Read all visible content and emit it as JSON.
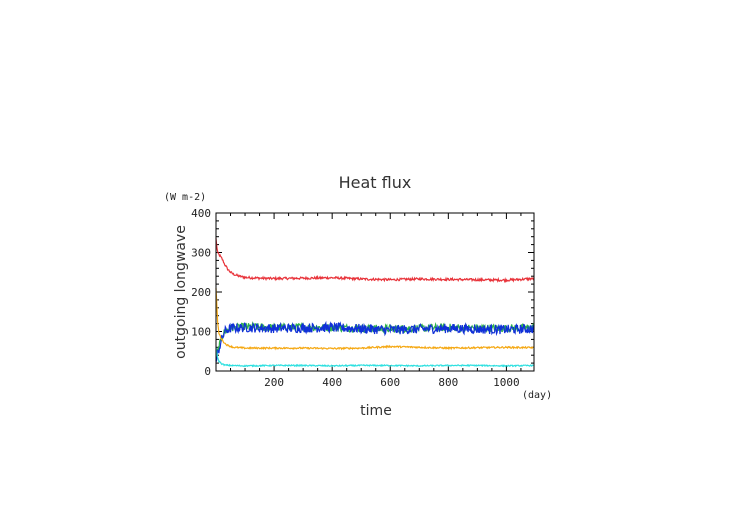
{
  "chart_data": {
    "type": "line",
    "title": "Heat flux",
    "xlabel": "time",
    "ylabel": "outgoing longwave",
    "xunit": "(day)",
    "yunit": "(W m-2)",
    "xlim": [
      0,
      1095
    ],
    "ylim": [
      0,
      400
    ],
    "xticks": [
      200,
      400,
      600,
      800,
      1000
    ],
    "yticks": [
      0,
      100,
      200,
      300,
      400
    ],
    "grid": false,
    "series": [
      {
        "color": "#e8333a",
        "x": [
          0,
          5,
          10,
          20,
          30,
          40,
          50,
          60,
          80,
          100,
          150,
          200,
          300,
          400,
          500,
          600,
          700,
          800,
          900,
          1000,
          1050,
          1095
        ],
        "values": [
          335,
          300,
          295,
          285,
          270,
          258,
          250,
          245,
          240,
          237,
          235,
          234,
          235,
          236,
          233,
          231,
          233,
          232,
          231,
          230,
          232,
          234
        ]
      },
      {
        "color": "#2fb34a",
        "x": [
          0,
          5,
          10,
          20,
          30,
          50,
          100,
          200,
          300,
          400,
          500,
          600,
          700,
          800,
          900,
          1000,
          1095
        ],
        "values": [
          30,
          45,
          60,
          85,
          100,
          108,
          112,
          110,
          111,
          110,
          108,
          107,
          108,
          110,
          109,
          108,
          110
        ]
      },
      {
        "color": "#1030d8",
        "x": [
          0,
          5,
          10,
          20,
          30,
          50,
          100,
          200,
          300,
          400,
          500,
          600,
          700,
          800,
          900,
          1000,
          1095
        ],
        "values": [
          20,
          40,
          55,
          80,
          100,
          108,
          110,
          108,
          109,
          110,
          107,
          104,
          106,
          108,
          106,
          105,
          107
        ]
      },
      {
        "color": "#f5a813",
        "x": [
          0,
          5,
          10,
          20,
          30,
          40,
          60,
          100,
          200,
          300,
          400,
          500,
          600,
          700,
          800,
          900,
          1000,
          1095
        ],
        "values": [
          210,
          130,
          95,
          80,
          70,
          65,
          60,
          58,
          58,
          58,
          57,
          58,
          62,
          60,
          58,
          59,
          60,
          59
        ]
      },
      {
        "color": "#2ee0e0",
        "x": [
          0,
          5,
          10,
          20,
          30,
          50,
          100,
          200,
          300,
          400,
          500,
          600,
          700,
          800,
          900,
          1000,
          1095
        ],
        "values": [
          60,
          35,
          25,
          18,
          15,
          14,
          13,
          14,
          14,
          13,
          14,
          14,
          13,
          14,
          14,
          13,
          14
        ]
      }
    ]
  }
}
